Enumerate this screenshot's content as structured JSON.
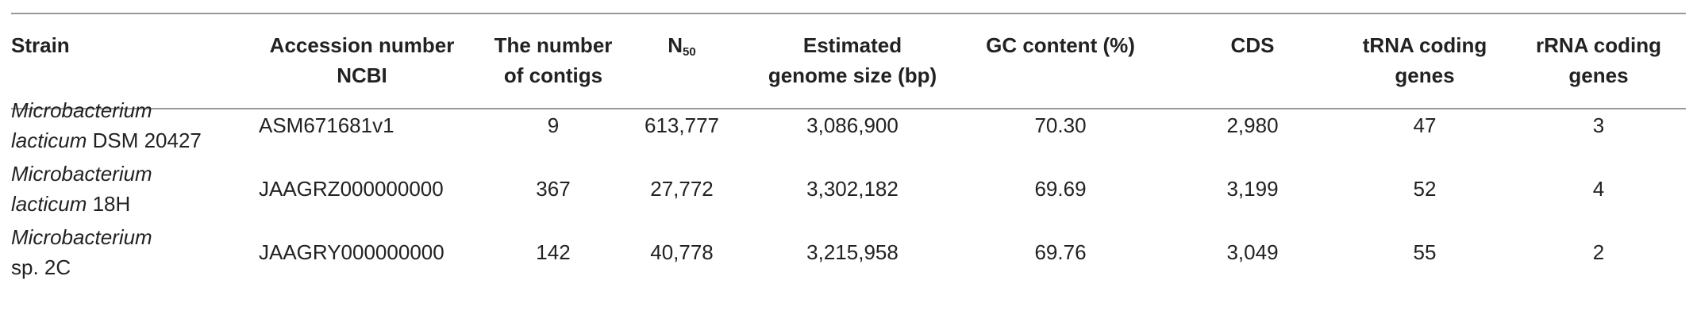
{
  "table": {
    "header": [
      [
        "Strain"
      ],
      [
        "Accession number",
        "NCBI"
      ],
      [
        "The number",
        "of contigs"
      ],
      [
        {
          "main": "N",
          "sub": "50"
        }
      ],
      [
        "Estimated",
        "genome size (bp)"
      ],
      [
        "GC content (%)"
      ],
      [
        "CDS"
      ],
      [
        "tRNA coding",
        "genes"
      ],
      [
        "rRNA coding",
        "genes"
      ]
    ],
    "rows": [
      [
        {
          "italic": "Microbacterium lacticum",
          "plain": "DSM 20427",
          "lines": [
            [
              "Microbacterium"
            ],
            [
              "lacticum",
              "DSM 20427"
            ]
          ]
        },
        "ASM671681v1",
        "9",
        "613,777",
        "3,086,900",
        "70.30",
        "2,980",
        "47",
        "3"
      ],
      [
        {
          "italic": "Microbacterium lacticum",
          "plain": "18H",
          "lines": [
            [
              "Microbacterium"
            ],
            [
              "lacticum",
              "18H"
            ]
          ]
        },
        "JAAGRZ000000000",
        "367",
        "27,772",
        "3,302,182",
        "69.69",
        "3,199",
        "52",
        "4"
      ],
      [
        {
          "italic": "Microbacterium",
          "plain": "sp. 2C",
          "lines": [
            [
              "Microbacterium"
            ],
            [
              "",
              "sp. 2C"
            ]
          ]
        },
        "JAAGRY000000000",
        "142",
        "40,778",
        "3,215,958",
        "69.76",
        "3,049",
        "55",
        "2"
      ]
    ]
  }
}
